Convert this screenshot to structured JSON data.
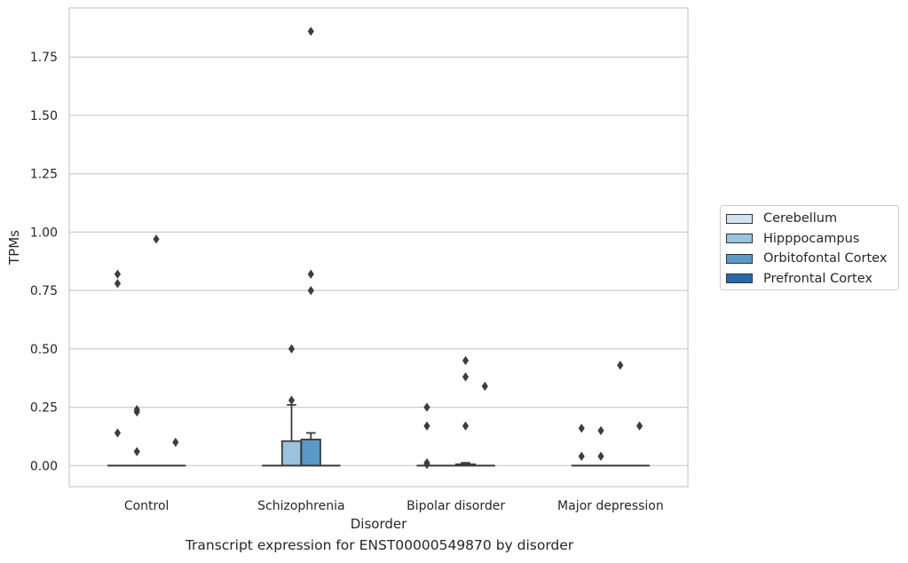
{
  "chart_data": {
    "type": "box",
    "title": "",
    "caption": "Transcript expression for ENST00000549870 by disorder",
    "xlabel": "Disorder",
    "ylabel": "TPMs",
    "ylim": [
      -0.09,
      1.96
    ],
    "yticks": [
      "0.00",
      "0.25",
      "0.50",
      "0.75",
      "1.00",
      "1.25",
      "1.50",
      "1.75"
    ],
    "categories": [
      "Control",
      "Schizophrenia",
      "Bipolar disorder",
      "Major depression"
    ],
    "grid": "horizontal",
    "legend_position": "right",
    "series": [
      {
        "name": "Cerebellum",
        "color": "#d3e3f2",
        "boxes": [
          {
            "q1": 0,
            "median": 0,
            "q3": 0,
            "whisker_low": 0,
            "whisker_high": 0,
            "outliers": [
              0.14,
              0.78,
              0.82
            ]
          },
          {
            "q1": 0,
            "median": 0,
            "q3": 0,
            "whisker_low": 0,
            "whisker_high": 0,
            "outliers": []
          },
          {
            "q1": 0,
            "median": 0,
            "q3": 0,
            "whisker_low": 0,
            "whisker_high": 0,
            "outliers": [
              0.005,
              0.012,
              0.17,
              0.25
            ]
          },
          {
            "q1": 0,
            "median": 0,
            "q3": 0,
            "whisker_low": 0,
            "whisker_high": 0,
            "outliers": [
              0.04,
              0.16
            ]
          }
        ]
      },
      {
        "name": "Hipppocampus",
        "color": "#9ac3de",
        "boxes": [
          {
            "q1": 0,
            "median": 0,
            "q3": 0,
            "whisker_low": 0,
            "whisker_high": 0,
            "outliers": [
              0.06,
              0.23,
              0.24
            ]
          },
          {
            "q1": 0,
            "median": 0,
            "q3": 0.105,
            "whisker_low": 0,
            "whisker_high": 0.26,
            "outliers": [
              0.28,
              0.5
            ]
          },
          {
            "q1": 0,
            "median": 0,
            "q3": 0,
            "whisker_low": 0,
            "whisker_high": 0,
            "outliers": []
          },
          {
            "q1": 0,
            "median": 0,
            "q3": 0,
            "whisker_low": 0,
            "whisker_high": 0,
            "outliers": [
              0.04,
              0.15
            ]
          }
        ]
      },
      {
        "name": "Orbitofontal Cortex",
        "color": "#5b9ac8",
        "boxes": [
          {
            "q1": 0,
            "median": 0,
            "q3": 0,
            "whisker_low": 0,
            "whisker_high": 0,
            "outliers": [
              0.97
            ]
          },
          {
            "q1": 0,
            "median": 0,
            "q3": 0.112,
            "whisker_low": 0,
            "whisker_high": 0.14,
            "outliers": [
              0.75,
              0.82,
              1.86
            ]
          },
          {
            "q1": 0,
            "median": 0,
            "q3": 0.006,
            "whisker_low": 0,
            "whisker_high": 0.012,
            "outliers": [
              0.17,
              0.38,
              0.45
            ]
          },
          {
            "q1": 0,
            "median": 0,
            "q3": 0,
            "whisker_low": 0,
            "whisker_high": 0,
            "outliers": [
              0.43
            ]
          }
        ]
      },
      {
        "name": "Prefrontal Cortex",
        "color": "#2a69a8",
        "boxes": [
          {
            "q1": 0,
            "median": 0,
            "q3": 0,
            "whisker_low": 0,
            "whisker_high": 0,
            "outliers": [
              0.1
            ]
          },
          {
            "q1": 0,
            "median": 0,
            "q3": 0,
            "whisker_low": 0,
            "whisker_high": 0,
            "outliers": []
          },
          {
            "q1": 0,
            "median": 0,
            "q3": 0,
            "whisker_low": 0,
            "whisker_high": 0,
            "outliers": [
              0.34
            ]
          },
          {
            "q1": 0,
            "median": 0,
            "q3": 0,
            "whisker_low": 0,
            "whisker_high": 0,
            "outliers": [
              0.17
            ]
          }
        ]
      }
    ]
  }
}
